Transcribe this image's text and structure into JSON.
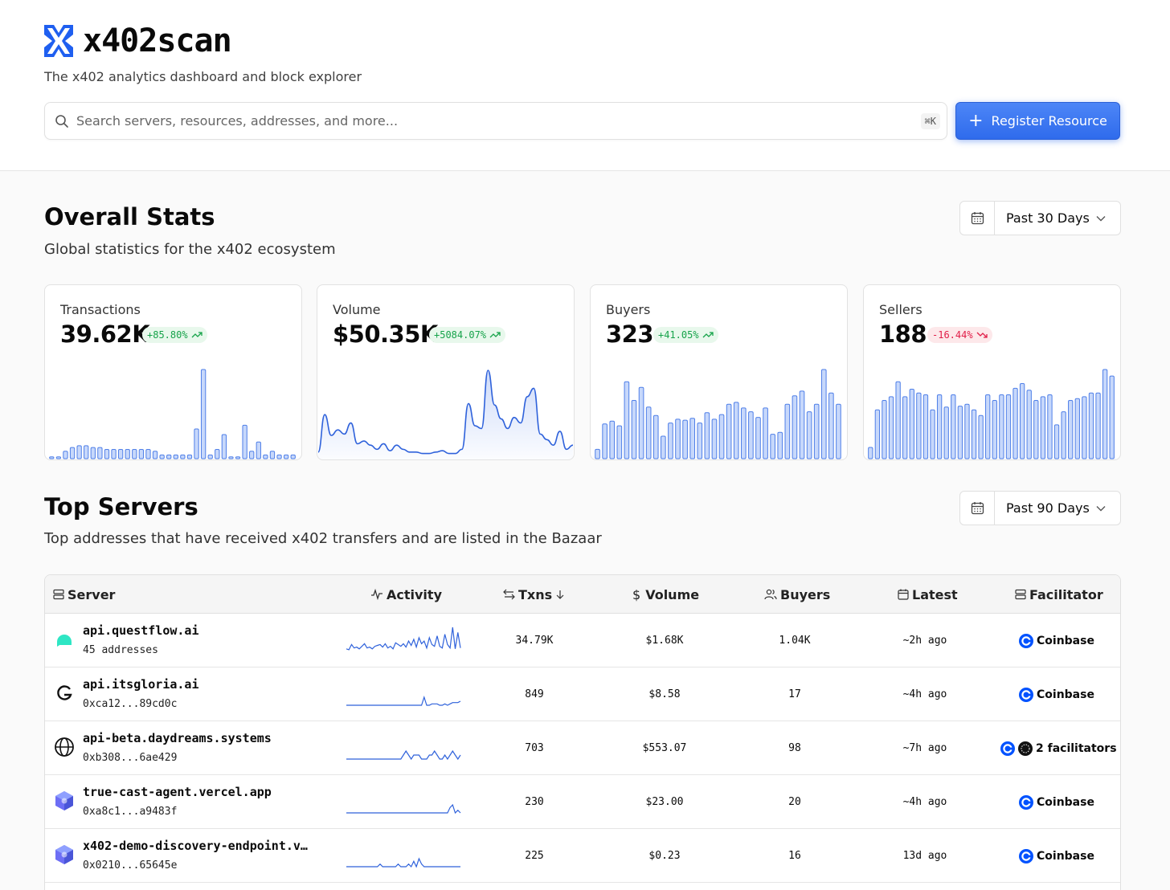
{
  "app": {
    "name": "x402scan",
    "tagline": "The x402 analytics dashboard and block explorer",
    "brand_color": "#1f5ff0"
  },
  "search": {
    "placeholder": "Search servers, resources, addresses, and more...",
    "shortcut": "⌘K",
    "icon": "search-icon"
  },
  "register_button": {
    "label": "Register Resource",
    "icon": "plus-icon"
  },
  "overall_stats": {
    "title": "Overall Stats",
    "subtitle": "Global statistics for the x402 ecosystem",
    "range": "Past 30 Days",
    "cards": [
      {
        "title": "Transactions",
        "value": "39.62K",
        "change": "+85.80%",
        "trend": "up",
        "chart": "bar",
        "series": [
          1,
          1,
          4,
          6,
          7,
          7,
          6,
          6,
          5,
          5,
          5,
          5,
          5,
          5,
          5,
          4,
          2,
          2,
          2,
          2,
          2,
          16,
          48,
          2,
          5,
          13,
          1,
          1,
          18,
          4,
          9,
          2,
          4,
          2,
          2,
          2
        ]
      },
      {
        "title": "Volume",
        "value": "$50.35K",
        "change": "+5084.07%",
        "trend": "up",
        "chart": "area",
        "series": [
          3,
          30,
          15,
          19,
          16,
          24,
          9,
          11,
          8,
          5,
          9,
          4,
          8,
          5,
          3,
          3,
          2,
          2,
          3,
          4,
          2,
          2,
          5,
          38,
          22,
          20,
          62,
          37,
          27,
          20,
          28,
          24,
          43,
          49,
          16,
          12,
          8,
          18,
          5,
          8
        ]
      },
      {
        "title": "Buyers",
        "value": "323",
        "change": "+41.05%",
        "trend": "up",
        "chart": "bar",
        "series": [
          10,
          37,
          40,
          35,
          82,
          62,
          76,
          55,
          46,
          24,
          38,
          42,
          41,
          43,
          38,
          49,
          42,
          47,
          58,
          60,
          54,
          50,
          44,
          54,
          26,
          28,
          58,
          67,
          72,
          50,
          58,
          95,
          70,
          58
        ]
      },
      {
        "title": "Sellers",
        "value": "188",
        "change": "-16.44%",
        "trend": "down",
        "chart": "bar",
        "series": [
          12,
          52,
          62,
          66,
          82,
          66,
          74,
          70,
          68,
          52,
          68,
          55,
          68,
          56,
          58,
          52,
          46,
          68,
          62,
          68,
          68,
          75,
          80,
          73,
          62,
          66,
          68,
          36,
          50,
          62,
          64,
          66,
          70,
          70,
          95,
          88
        ]
      }
    ]
  },
  "top_servers": {
    "title": "Top Servers",
    "subtitle": "Top addresses that have received x402 transfers and are listed in the Bazaar",
    "range": "Past 90 Days",
    "columns": {
      "server": "Server",
      "activity": "Activity",
      "txns": "Txns",
      "volume": "Volume",
      "buyers": "Buyers",
      "latest": "Latest",
      "facilitator": "Facilitator"
    },
    "rows": [
      {
        "name": "api.questflow.ai",
        "sub": "45 addresses",
        "txns": "34.79K",
        "volume": "$1.68K",
        "buyers": "1.04K",
        "latest": "~2h ago",
        "facilitator": "Coinbase",
        "multi": false,
        "spark": [
          3,
          2,
          8,
          4,
          5,
          3,
          6,
          9,
          4,
          5,
          3,
          6,
          7,
          8,
          5,
          9,
          4,
          6,
          3,
          10,
          8,
          6,
          9,
          5,
          12,
          7,
          14,
          5,
          16,
          9,
          12,
          4,
          16,
          8,
          6,
          18,
          6,
          4,
          20,
          8,
          4,
          28,
          3,
          22,
          4
        ]
      },
      {
        "name": "api.itsgloria.ai",
        "sub": "0xca12...89cd0c",
        "txns": "849",
        "volume": "$8.58",
        "buyers": "17",
        "latest": "~4h ago",
        "facilitator": "Coinbase",
        "multi": false,
        "spark": [
          0,
          0,
          0,
          0,
          0,
          0,
          0,
          0,
          0,
          0,
          0,
          0,
          0,
          0,
          0,
          0,
          0,
          0,
          0,
          0,
          0,
          0,
          0,
          0,
          0,
          0,
          0,
          0,
          0,
          0,
          6,
          0,
          0,
          1,
          1,
          1,
          0,
          0,
          1,
          0,
          1,
          2,
          2,
          2,
          3
        ]
      },
      {
        "name": "api-beta.daydreams.systems",
        "sub": "0xb308...6ae429",
        "txns": "703",
        "volume": "$553.07",
        "buyers": "98",
        "latest": "~7h ago",
        "facilitator": "2 facilitators",
        "multi": true,
        "spark": [
          0,
          0,
          0,
          0,
          0,
          0,
          0,
          0,
          0,
          0,
          0,
          0,
          0,
          0,
          0,
          0,
          0,
          0,
          0,
          0,
          0,
          0,
          1,
          2,
          1,
          0,
          1,
          1,
          1,
          0,
          0,
          0,
          1,
          1,
          2,
          1,
          0,
          0,
          1,
          0,
          1,
          2,
          1,
          0,
          1
        ]
      },
      {
        "name": "true-cast-agent.vercel.app",
        "sub": "0xa8c1...a9483f",
        "txns": "230",
        "volume": "$23.00",
        "buyers": "20",
        "latest": "~4h ago",
        "facilitator": "Coinbase",
        "multi": false,
        "spark": [
          0,
          0,
          0,
          0,
          0,
          0,
          0,
          0,
          0,
          0,
          0,
          0,
          0,
          0,
          0,
          0,
          0,
          0,
          0,
          0,
          0,
          0,
          0,
          0,
          0,
          0,
          0,
          0,
          0,
          0,
          0,
          0,
          0,
          0,
          0,
          0,
          0,
          0,
          0,
          0,
          2,
          3,
          0,
          1,
          0
        ]
      },
      {
        "name": "x402-demo-discovery-endpoint.v…",
        "sub": "0x0210...65645e",
        "txns": "225",
        "volume": "$0.23",
        "buyers": "16",
        "latest": "13d ago",
        "facilitator": "Coinbase",
        "multi": false,
        "spark": [
          0,
          0,
          0,
          0,
          0,
          0,
          0,
          0,
          0,
          0,
          0,
          0,
          0,
          1,
          0,
          0,
          0,
          0,
          0,
          0,
          1,
          0,
          0,
          0,
          1,
          0,
          2,
          0,
          3,
          1,
          0,
          0,
          0,
          0,
          0,
          0,
          0,
          0,
          0,
          0,
          0,
          0,
          0,
          0,
          0
        ]
      }
    ]
  }
}
